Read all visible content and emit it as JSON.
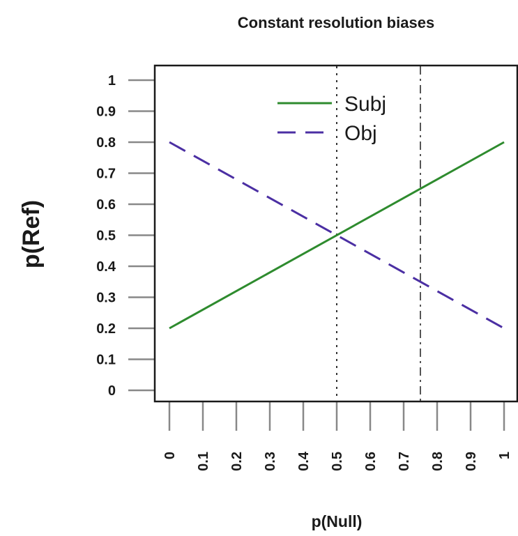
{
  "chart_data": {
    "type": "line",
    "title": "Constant resolution biases",
    "xlabel": "p(Null)",
    "ylabel": "p(Ref)",
    "xlim": [
      0,
      1
    ],
    "ylim": [
      0,
      1
    ],
    "x_ticks": [
      "0",
      "0.1",
      "0.2",
      "0.3",
      "0.4",
      "0.5",
      "0.6",
      "0.7",
      "0.8",
      "0.9",
      "1"
    ],
    "y_ticks": [
      "0",
      "0.1",
      "0.2",
      "0.3",
      "0.4",
      "0.5",
      "0.6",
      "0.7",
      "0.8",
      "0.9",
      "1"
    ],
    "grid": false,
    "legend_position": "top-right",
    "series": [
      {
        "name": "Subj",
        "x": [
          0,
          1
        ],
        "values": [
          0.2,
          0.8
        ],
        "color": "#2e8b2e",
        "dash": "solid"
      },
      {
        "name": "Obj",
        "x": [
          0,
          1
        ],
        "values": [
          0.8,
          0.2
        ],
        "color": "#4b2fa3",
        "dash": "dashed"
      }
    ],
    "reference_lines": [
      {
        "x": 0.5,
        "style": "dotted",
        "color": "#333333"
      },
      {
        "x": 0.75,
        "style": "dash-dot",
        "color": "#555555"
      }
    ]
  }
}
